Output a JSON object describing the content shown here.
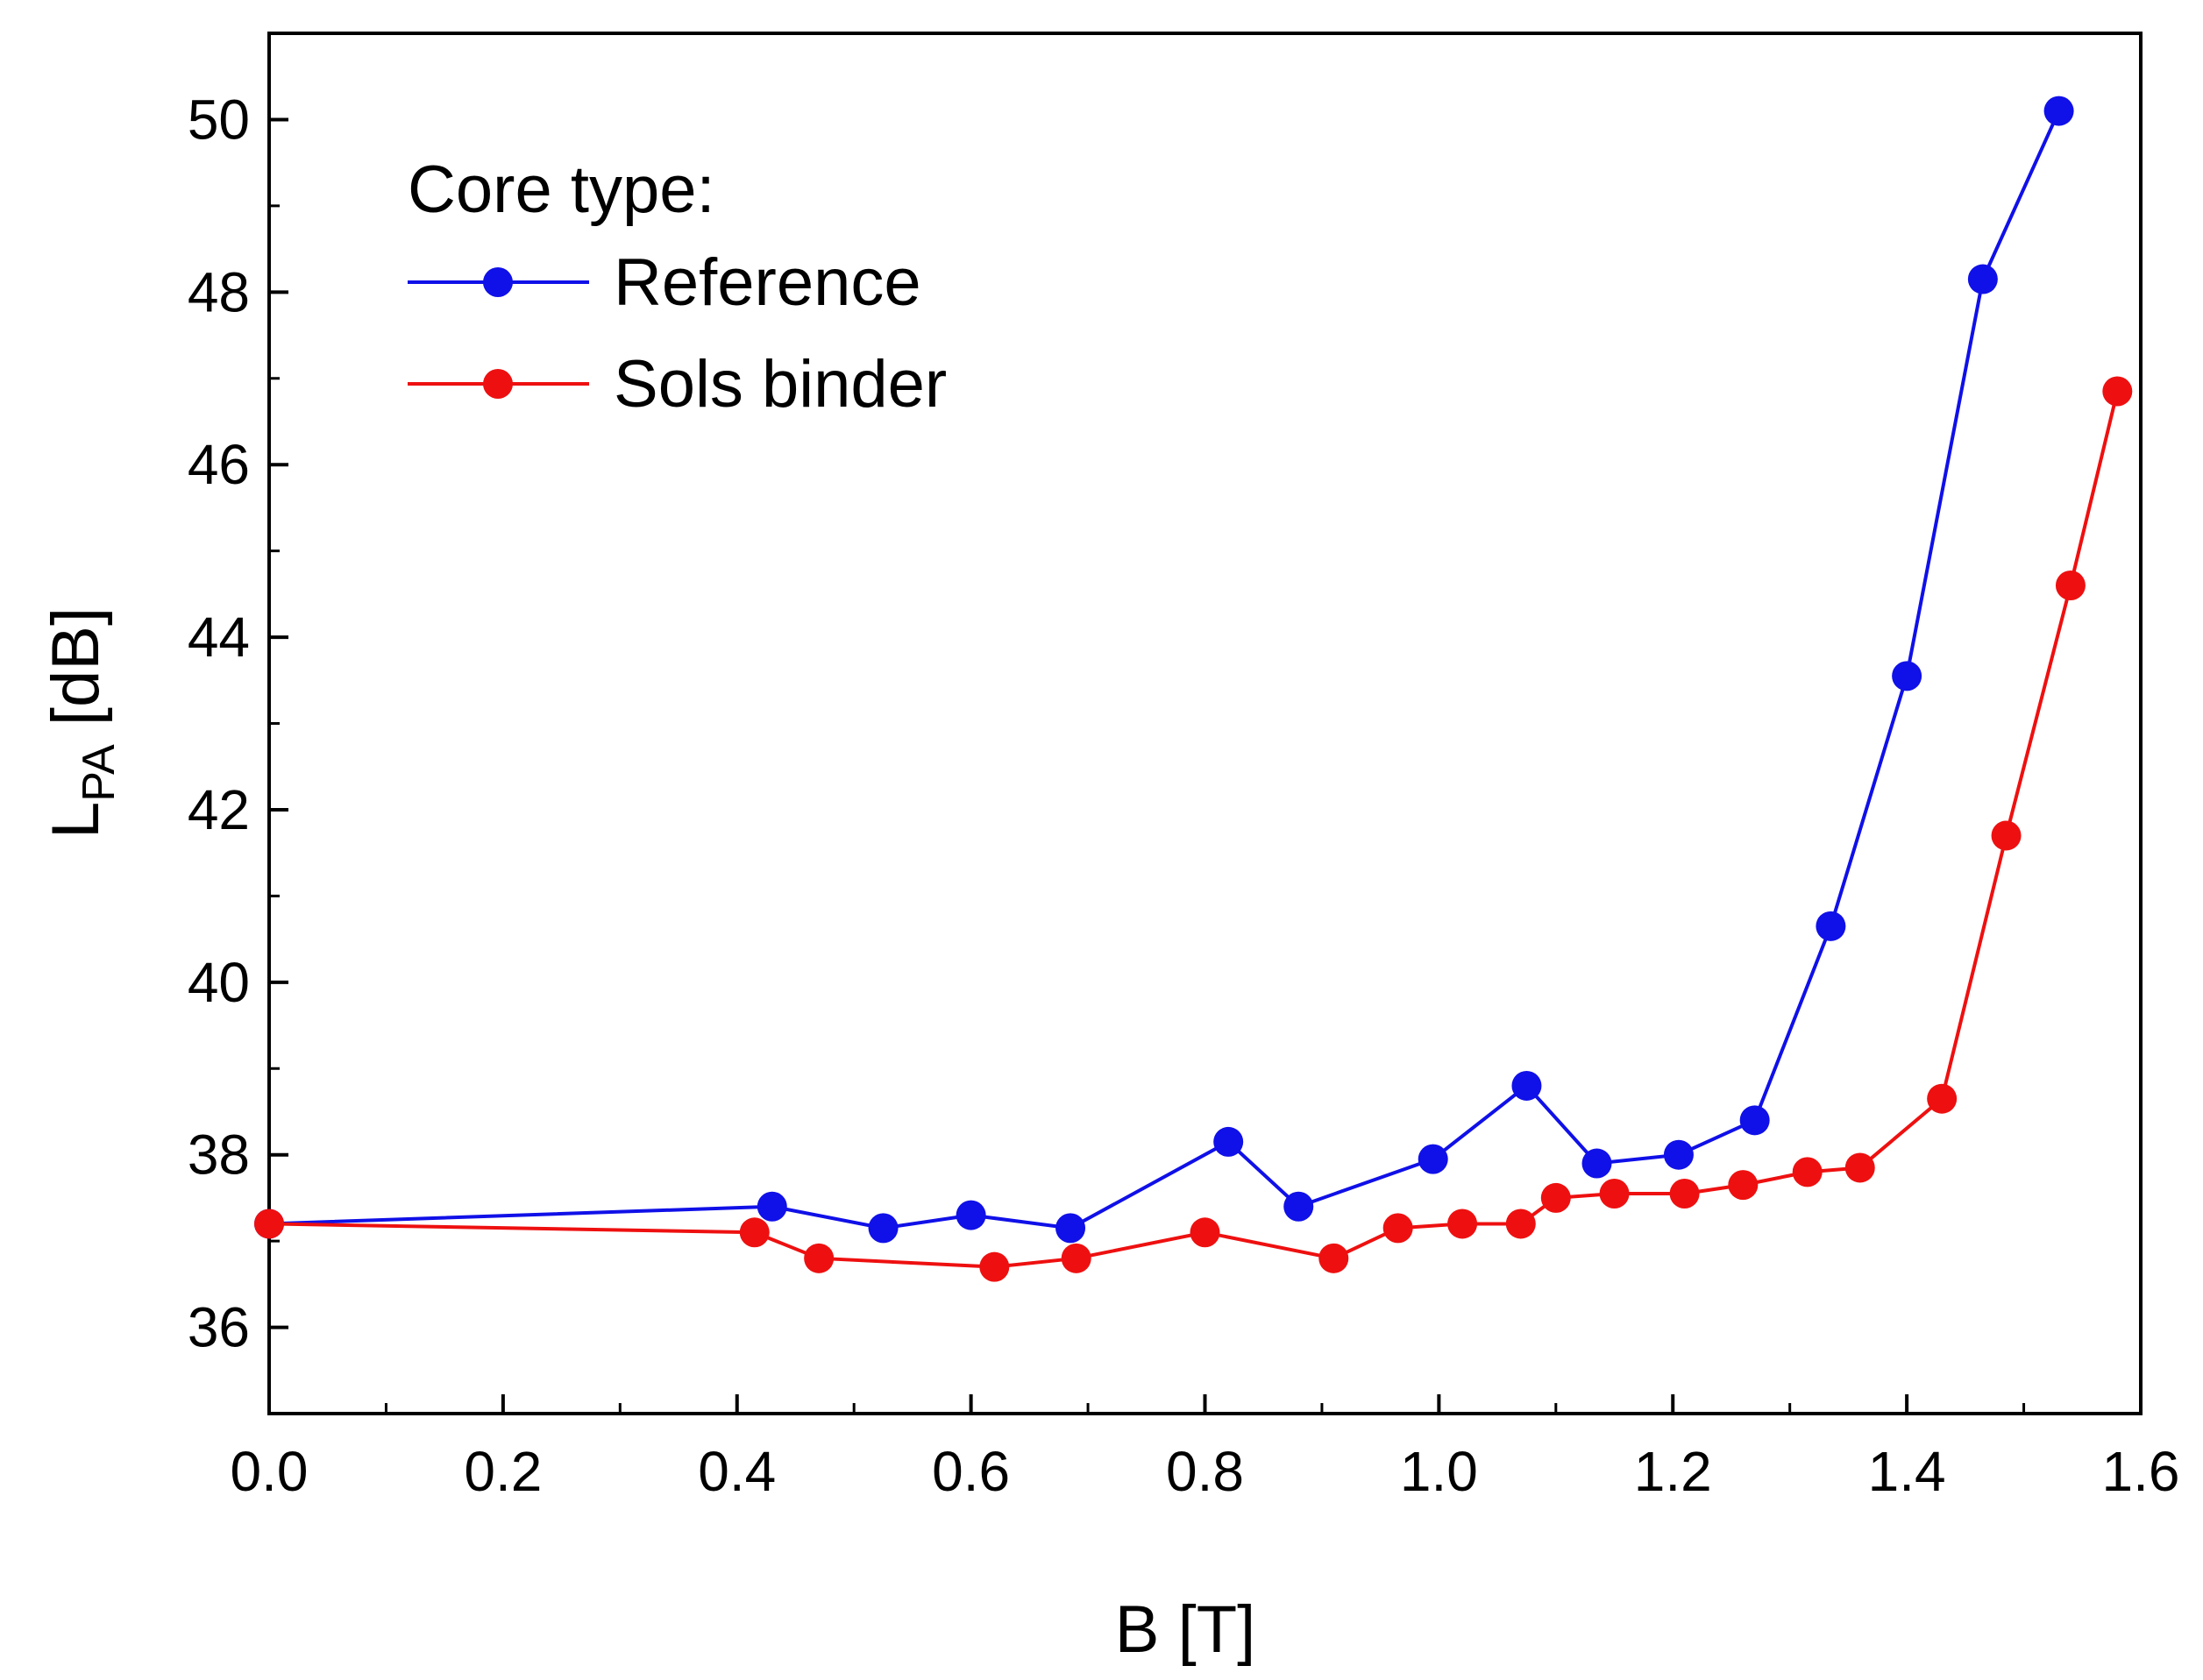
{
  "chart_data": {
    "type": "line",
    "title": "",
    "xlabel": "B [T]",
    "ylabel_main": "L",
    "ylabel_sub": "PA",
    "ylabel_unit": " [dB]",
    "xlim": [
      0.0,
      1.6
    ],
    "ylim": [
      35,
      51
    ],
    "x_ticks": [
      0.0,
      0.2,
      0.4,
      0.6,
      0.8,
      1.0,
      1.2,
      1.4,
      1.6
    ],
    "x_tick_labels": [
      "0.0",
      "0.2",
      "0.4",
      "0.6",
      "0.8",
      "1.0",
      "1.2",
      "1.4",
      "1.6"
    ],
    "y_ticks": [
      36,
      38,
      40,
      42,
      44,
      46,
      48,
      50
    ],
    "y_tick_labels": [
      "36",
      "38",
      "40",
      "42",
      "44",
      "46",
      "48",
      "50"
    ],
    "x_minor_step": 0.1,
    "y_minor_step": 1,
    "grid": false,
    "legend": {
      "title": "Core type:",
      "position": "top-left"
    },
    "series": [
      {
        "name": "Reference",
        "color": "#1010e8",
        "x": [
          0.0,
          0.43,
          0.525,
          0.6,
          0.685,
          0.82,
          0.88,
          0.995,
          1.075,
          1.135,
          1.205,
          1.27,
          1.335,
          1.4,
          1.465,
          1.53
        ],
        "y": [
          37.2,
          37.4,
          37.15,
          37.3,
          37.15,
          38.15,
          37.4,
          37.95,
          38.8,
          37.9,
          38.0,
          38.4,
          40.65,
          43.55,
          48.15,
          50.1
        ]
      },
      {
        "name": "Sols binder",
        "color": "#ee1010",
        "x": [
          0.0,
          0.415,
          0.47,
          0.62,
          0.69,
          0.8,
          0.91,
          0.965,
          1.02,
          1.07,
          1.1,
          1.15,
          1.21,
          1.26,
          1.315,
          1.36,
          1.43,
          1.485,
          1.54,
          1.58
        ],
        "y": [
          37.2,
          37.1,
          36.8,
          36.7,
          36.8,
          37.1,
          36.8,
          37.15,
          37.2,
          37.2,
          37.5,
          37.55,
          37.55,
          37.65,
          37.8,
          37.85,
          38.65,
          41.7,
          44.6,
          46.85
        ]
      }
    ]
  }
}
